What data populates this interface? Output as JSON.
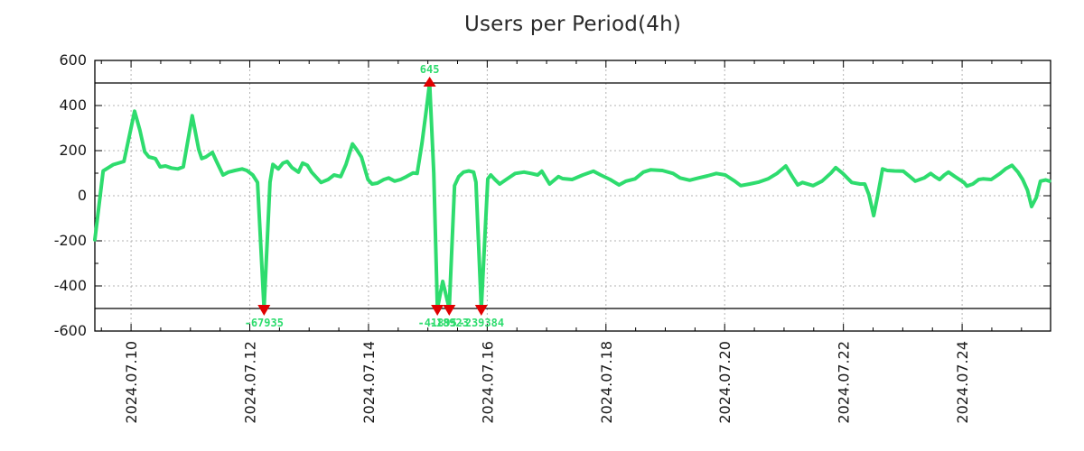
{
  "title": "Users per Period(4h)",
  "chart_data": {
    "type": "line",
    "title": "Users per Period(4h)",
    "x_axis": {
      "tick_labels": [
        "2024.07.10",
        "2024.07.12",
        "2024.07.14",
        "2024.07.16",
        "2024.07.18",
        "2024.07.20",
        "2024.07.22",
        "2024.07.24"
      ],
      "tick_days": [
        1,
        3,
        5,
        7,
        9,
        11,
        13,
        15
      ],
      "range_days": [
        0.39,
        16.49
      ],
      "minor_tick_step_days": 0.5
    },
    "y_axis": {
      "tick_values": [
        600,
        400,
        200,
        0,
        -200,
        -400,
        -600
      ],
      "range": [
        -600,
        600
      ],
      "minor_tick_step": 100
    },
    "threshold_lines": [
      500,
      -500
    ],
    "clip_range": [
      -500,
      500
    ],
    "grid": true,
    "legend": "none",
    "colors": {
      "line": "#2EDC6E",
      "annotation_text": "#2EDC6E",
      "marker": "#E00000",
      "grid": "#b3b3b3",
      "axis": "#000000",
      "tick_text": "#1a1a1a",
      "title": "#2a2a2a"
    },
    "series": [
      {
        "name": "users",
        "points": [
          [
            0.39,
            -195
          ],
          [
            0.53,
            110
          ],
          [
            0.62,
            125
          ],
          [
            0.7,
            138
          ],
          [
            0.88,
            152
          ],
          [
            1.06,
            375
          ],
          [
            1.15,
            290
          ],
          [
            1.23,
            195
          ],
          [
            1.3,
            172
          ],
          [
            1.41,
            165
          ],
          [
            1.49,
            128
          ],
          [
            1.58,
            132
          ],
          [
            1.68,
            123
          ],
          [
            1.79,
            119
          ],
          [
            1.88,
            128
          ],
          [
            2.03,
            355
          ],
          [
            2.14,
            205
          ],
          [
            2.19,
            165
          ],
          [
            2.26,
            172
          ],
          [
            2.37,
            192
          ],
          [
            2.44,
            152
          ],
          [
            2.55,
            92
          ],
          [
            2.64,
            105
          ],
          [
            2.75,
            112
          ],
          [
            2.87,
            119
          ],
          [
            2.95,
            112
          ],
          [
            3.05,
            92
          ],
          [
            3.13,
            59
          ],
          [
            3.24,
            -67935
          ],
          [
            3.34,
            60
          ],
          [
            3.39,
            139
          ],
          [
            3.48,
            119
          ],
          [
            3.56,
            145
          ],
          [
            3.63,
            152
          ],
          [
            3.71,
            125
          ],
          [
            3.82,
            105
          ],
          [
            3.89,
            145
          ],
          [
            3.97,
            135
          ],
          [
            4.04,
            105
          ],
          [
            4.2,
            59
          ],
          [
            4.32,
            72
          ],
          [
            4.42,
            92
          ],
          [
            4.53,
            85
          ],
          [
            4.62,
            139
          ],
          [
            4.73,
            230
          ],
          [
            4.8,
            205
          ],
          [
            4.88,
            172
          ],
          [
            4.99,
            72
          ],
          [
            5.06,
            52
          ],
          [
            5.15,
            56
          ],
          [
            5.26,
            72
          ],
          [
            5.34,
            79
          ],
          [
            5.44,
            65
          ],
          [
            5.54,
            72
          ],
          [
            5.64,
            85
          ],
          [
            5.75,
            101
          ],
          [
            5.82,
            99
          ],
          [
            5.9,
            232
          ],
          [
            5.98,
            392
          ],
          [
            6.03,
            645
          ],
          [
            6.1,
            100
          ],
          [
            6.16,
            -41895
          ],
          [
            6.25,
            -380
          ],
          [
            6.36,
            -18923
          ],
          [
            6.45,
            45
          ],
          [
            6.52,
            85
          ],
          [
            6.6,
            105
          ],
          [
            6.69,
            110
          ],
          [
            6.77,
            105
          ],
          [
            6.81,
            60
          ],
          [
            6.9,
            -239384
          ],
          [
            7.01,
            75
          ],
          [
            7.06,
            92
          ],
          [
            7.13,
            72
          ],
          [
            7.21,
            52
          ],
          [
            7.32,
            72
          ],
          [
            7.47,
            99
          ],
          [
            7.62,
            105
          ],
          [
            7.74,
            99
          ],
          [
            7.85,
            92
          ],
          [
            7.92,
            109
          ],
          [
            8.05,
            52
          ],
          [
            8.2,
            85
          ],
          [
            8.27,
            76
          ],
          [
            8.43,
            72
          ],
          [
            8.61,
            92
          ],
          [
            8.79,
            109
          ],
          [
            8.91,
            92
          ],
          [
            9.07,
            72
          ],
          [
            9.22,
            48
          ],
          [
            9.34,
            65
          ],
          [
            9.49,
            75
          ],
          [
            9.63,
            105
          ],
          [
            9.75,
            115
          ],
          [
            9.95,
            112
          ],
          [
            10.13,
            99
          ],
          [
            10.25,
            79
          ],
          [
            10.41,
            69
          ],
          [
            10.56,
            79
          ],
          [
            10.71,
            88
          ],
          [
            10.86,
            99
          ],
          [
            11.01,
            92
          ],
          [
            11.17,
            65
          ],
          [
            11.27,
            45
          ],
          [
            11.42,
            52
          ],
          [
            11.58,
            61
          ],
          [
            11.73,
            75
          ],
          [
            11.88,
            99
          ],
          [
            12.03,
            132
          ],
          [
            12.14,
            85
          ],
          [
            12.23,
            48
          ],
          [
            12.31,
            59
          ],
          [
            12.49,
            45
          ],
          [
            12.64,
            65
          ],
          [
            12.79,
            101
          ],
          [
            12.87,
            125
          ],
          [
            12.99,
            99
          ],
          [
            13.14,
            59
          ],
          [
            13.28,
            52
          ],
          [
            13.36,
            52
          ],
          [
            13.43,
            5
          ],
          [
            13.51,
            -88
          ],
          [
            13.58,
            5
          ],
          [
            13.66,
            119
          ],
          [
            13.74,
            112
          ],
          [
            13.86,
            110
          ],
          [
            14.01,
            109
          ],
          [
            14.12,
            85
          ],
          [
            14.21,
            65
          ],
          [
            14.36,
            79
          ],
          [
            14.47,
            99
          ],
          [
            14.54,
            85
          ],
          [
            14.62,
            72
          ],
          [
            14.7,
            92
          ],
          [
            14.77,
            105
          ],
          [
            14.88,
            85
          ],
          [
            15.03,
            59
          ],
          [
            15.08,
            43
          ],
          [
            15.18,
            52
          ],
          [
            15.28,
            72
          ],
          [
            15.35,
            75
          ],
          [
            15.49,
            72
          ],
          [
            15.64,
            99
          ],
          [
            15.73,
            119
          ],
          [
            15.84,
            135
          ],
          [
            15.94,
            105
          ],
          [
            16.02,
            72
          ],
          [
            16.1,
            25
          ],
          [
            16.17,
            -48
          ],
          [
            16.25,
            -8
          ],
          [
            16.32,
            65
          ],
          [
            16.41,
            70
          ],
          [
            16.47,
            65
          ]
        ]
      }
    ],
    "annotations": [
      {
        "type": "max",
        "x_day": 6.03,
        "value": 645,
        "label": "645"
      },
      {
        "type": "min",
        "x_day": 3.24,
        "value": -67935,
        "label": "-67935"
      },
      {
        "type": "min",
        "x_day": 6.16,
        "value": -41895,
        "label": "-41895"
      },
      {
        "type": "min",
        "x_day": 6.36,
        "value": -18923,
        "label": "-18923"
      },
      {
        "type": "min",
        "x_day": 6.9,
        "value": -239384,
        "label": "-239384"
      }
    ]
  }
}
